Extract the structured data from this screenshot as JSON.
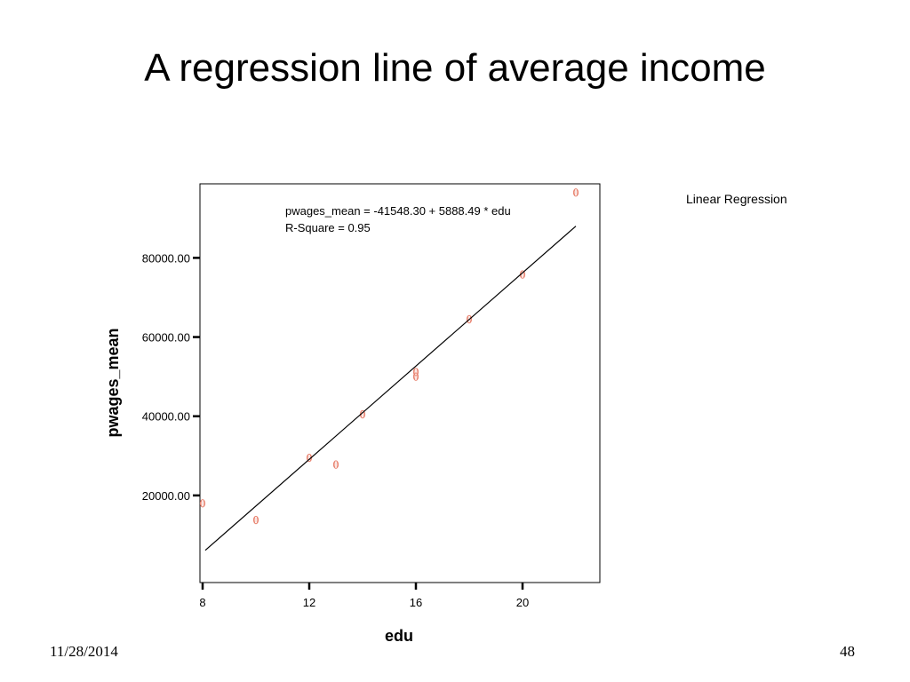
{
  "slide": {
    "title": "A regression line of average income",
    "date": "11/28/2014",
    "page_number": "48"
  },
  "chart_data": {
    "type": "scatter",
    "xlabel": "edu",
    "ylabel": "pwages_mean",
    "xlim": [
      7.9,
      22.9
    ],
    "ylim": [
      -2000,
      98700
    ],
    "xticks": [
      8,
      12,
      16,
      20
    ],
    "xtick_labels": [
      "8",
      "12",
      "16",
      "20"
    ],
    "yticks": [
      20000,
      40000,
      60000,
      80000
    ],
    "ytick_labels": [
      "20000.00",
      "40000.00",
      "60000.00",
      "80000.00"
    ],
    "points": [
      {
        "x": 8,
        "y": 18000
      },
      {
        "x": 10,
        "y": 13800
      },
      {
        "x": 12,
        "y": 29500
      },
      {
        "x": 13,
        "y": 27800
      },
      {
        "x": 14,
        "y": 40500
      },
      {
        "x": 16,
        "y": 50000
      },
      {
        "x": 16,
        "y": 51200
      },
      {
        "x": 18,
        "y": 64500
      },
      {
        "x": 20,
        "y": 75800
      },
      {
        "x": 22,
        "y": 96500
      }
    ],
    "fit": {
      "intercept": -41548.3,
      "slope": 5888.49,
      "x_range": [
        8.1,
        22
      ]
    },
    "annotation_lines": [
      "pwages_mean = -41548.30 + 5888.49 * edu",
      "R-Square = 0.95"
    ],
    "legend_label": "Linear Regression",
    "legend_position": "top-right, outside plot",
    "grid": false,
    "colors": {
      "points": "#e8826f",
      "line": "#000000",
      "frame": "#000000"
    }
  }
}
